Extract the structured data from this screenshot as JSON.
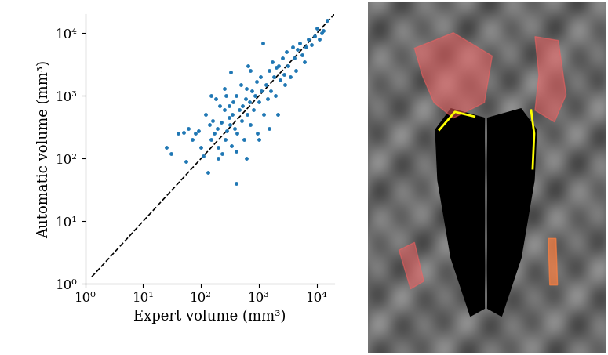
{
  "chart_data": {
    "type": "scatter",
    "x_label": "Expert volume (mm³)",
    "y_label": "Automatic volume (mm³)",
    "log": true,
    "xlim": [
      1,
      20000
    ],
    "ylim": [
      1,
      20000
    ],
    "xticks": [
      {
        "value": 1,
        "label": "10⁰"
      },
      {
        "value": 10,
        "label": "10¹"
      },
      {
        "value": 100,
        "label": "10²"
      },
      {
        "value": 1000,
        "label": "10³"
      },
      {
        "value": 10000,
        "label": "10⁴"
      }
    ],
    "yticks": [
      {
        "value": 1,
        "label": "10⁰"
      },
      {
        "value": 10,
        "label": "10¹"
      },
      {
        "value": 100,
        "label": "10²"
      },
      {
        "value": 1000,
        "label": "10³"
      },
      {
        "value": 10000,
        "label": "10⁴"
      }
    ],
    "series": [
      {
        "type": "scatter",
        "color": "#1f77b4",
        "marker": "circle",
        "x": [
          25,
          30,
          40,
          50,
          55,
          60,
          70,
          80,
          90,
          100,
          110,
          120,
          130,
          140,
          150,
          160,
          170,
          180,
          190,
          200,
          210,
          220,
          230,
          250,
          260,
          270,
          280,
          300,
          310,
          320,
          330,
          350,
          360,
          380,
          400,
          400,
          420,
          450,
          480,
          500,
          520,
          550,
          580,
          600,
          620,
          650,
          680,
          700,
          750,
          800,
          850,
          900,
          950,
          1000,
          1050,
          1100,
          1150,
          1200,
          1300,
          1400,
          1500,
          1600,
          1700,
          1800,
          1900,
          2000,
          2100,
          2200,
          2300,
          2500,
          2700,
          2800,
          3000,
          3200,
          3500,
          3800,
          4000,
          4300,
          4600,
          5000,
          5500,
          6000,
          6500,
          7000,
          8000,
          9000,
          10000,
          11000,
          12000,
          13000,
          15000,
          400,
          200,
          600,
          1500,
          300,
          150,
          250,
          700,
          1000
        ],
        "values": [
          150,
          120,
          250,
          260,
          90,
          300,
          200,
          250,
          280,
          150,
          110,
          500,
          60,
          350,
          200,
          400,
          250,
          900,
          300,
          150,
          700,
          380,
          120,
          600,
          200,
          1000,
          280,
          450,
          350,
          2400,
          160,
          500,
          800,
          300,
          1000,
          40,
          250,
          600,
          1500,
          400,
          700,
          200,
          900,
          1300,
          500,
          3000,
          800,
          350,
          1200,
          600,
          1000,
          1700,
          250,
          800,
          2000,
          1200,
          7000,
          500,
          1500,
          900,
          2500,
          1200,
          3500,
          2000,
          1000,
          2800,
          500,
          3000,
          1800,
          4000,
          2200,
          1500,
          5000,
          3000,
          2000,
          6000,
          4000,
          2500,
          5500,
          7000,
          4500,
          3500,
          6000,
          8000,
          6500,
          9000,
          12000,
          8000,
          10000,
          11000,
          16000,
          130,
          100,
          100,
          300,
          700,
          1000,
          1300,
          2500,
          200
        ]
      },
      {
        "type": "line",
        "color": "black",
        "line_style": "dashed",
        "x": [
          1.3,
          20000
        ],
        "values": [
          1.3,
          20000
        ]
      }
    ]
  }
}
